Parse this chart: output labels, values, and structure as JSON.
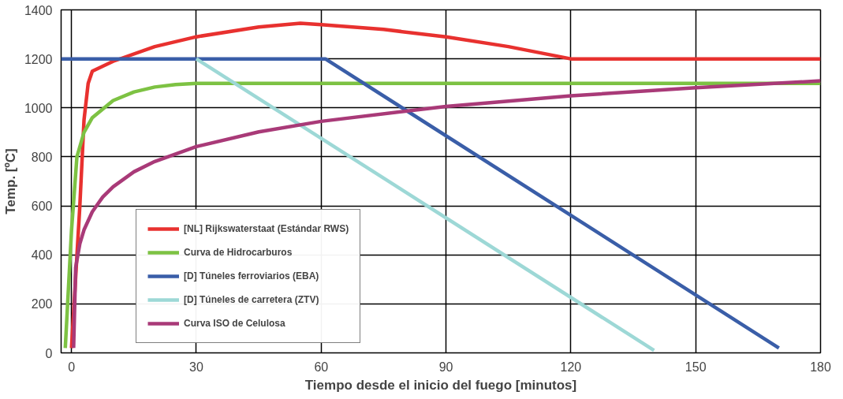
{
  "chart_data": {
    "type": "line",
    "xlabel": "Tiempo desde el inicio del fuego [minutos]",
    "ylabel": "Temp. [ºC]",
    "xlim": [
      -2.5,
      180
    ],
    "ylim": [
      0,
      1400
    ],
    "xticks": [
      0,
      30,
      60,
      90,
      120,
      150,
      180
    ],
    "yticks": [
      0,
      200,
      400,
      600,
      800,
      1000,
      1200,
      1400
    ],
    "grid": true,
    "legend": "bottom left",
    "line_style": "solid",
    "series": [
      {
        "name": "[NL] Rijkswaterstaat (Estándar RWS)",
        "color": "#e8312f",
        "x": [
          0,
          2,
          3,
          4,
          5,
          10,
          20,
          30,
          45,
          55,
          60,
          75,
          90,
          105,
          120,
          180
        ],
        "values": [
          20,
          600,
          950,
          1100,
          1150,
          1190,
          1250,
          1290,
          1330,
          1345,
          1340,
          1320,
          1290,
          1250,
          1200,
          1200
        ]
      },
      {
        "name": "Curva de Hidrocarburos",
        "color": "#7dc243",
        "x": [
          -1.5,
          0,
          1.3,
          3,
          5,
          10,
          15,
          20,
          25,
          30,
          180
        ],
        "values": [
          20,
          500,
          800,
          900,
          960,
          1030,
          1065,
          1085,
          1095,
          1100,
          1100
        ]
      },
      {
        "name": "[D] Túneles ferroviarios (EBA)",
        "color": "#3a5ea8",
        "x": [
          -2.5,
          61,
          170
        ],
        "values": [
          1200,
          1200,
          20
        ]
      },
      {
        "name": "[D] Túneles de carretera (ZTV)",
        "color": "#9dd8d6",
        "x": [
          30,
          140
        ],
        "values": [
          1200,
          10
        ]
      },
      {
        "name": "Curva ISO de Celulosa",
        "color": "#a93a78",
        "x": [
          0.5,
          1,
          2,
          3,
          5,
          7.5,
          10,
          15,
          20,
          30,
          45,
          60,
          90,
          120,
          150,
          180
        ],
        "values": [
          20,
          349,
          445,
          502,
          576,
          636,
          678,
          739,
          781,
          842,
          902,
          945,
          1006,
          1049,
          1082,
          1110
        ]
      }
    ]
  }
}
